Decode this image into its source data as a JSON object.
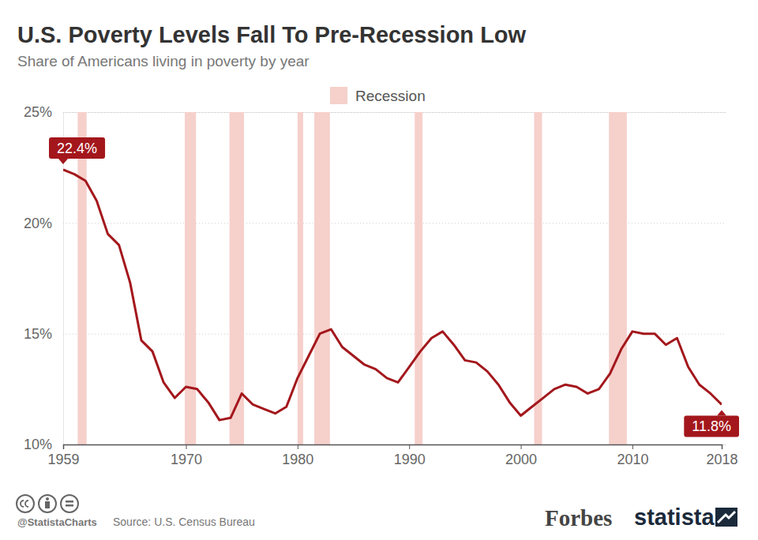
{
  "chart_data": {
    "type": "line",
    "title": "U.S. Poverty Levels Fall To Pre-Recession Low",
    "subtitle": "Share of Americans living in poverty by year",
    "source": "Source: U.S. Census Bureau",
    "credit": "@StatistaCharts",
    "brands": [
      "Forbes",
      "statista"
    ],
    "color": "#a3171c",
    "x": [
      1959,
      1960,
      1961,
      1962,
      1963,
      1964,
      1965,
      1966,
      1967,
      1968,
      1969,
      1970,
      1971,
      1972,
      1973,
      1974,
      1975,
      1976,
      1977,
      1978,
      1979,
      1980,
      1981,
      1982,
      1983,
      1984,
      1985,
      1986,
      1987,
      1988,
      1989,
      1990,
      1991,
      1992,
      1993,
      1994,
      1995,
      1996,
      1997,
      1998,
      1999,
      2000,
      2001,
      2002,
      2003,
      2004,
      2005,
      2006,
      2007,
      2008,
      2009,
      2010,
      2011,
      2012,
      2013,
      2014,
      2015,
      2016,
      2017,
      2018
    ],
    "values": [
      22.4,
      22.2,
      21.9,
      21.0,
      19.5,
      19.0,
      17.3,
      14.7,
      14.2,
      12.8,
      12.1,
      12.6,
      12.5,
      11.9,
      11.1,
      11.2,
      12.3,
      11.8,
      11.6,
      11.4,
      11.7,
      13.0,
      14.0,
      15.0,
      15.2,
      14.4,
      14.0,
      13.6,
      13.4,
      13.0,
      12.8,
      13.5,
      14.2,
      14.8,
      15.1,
      14.5,
      13.8,
      13.7,
      13.3,
      12.7,
      11.9,
      11.3,
      11.7,
      12.1,
      12.5,
      12.7,
      12.6,
      12.3,
      12.5,
      13.2,
      14.3,
      15.1,
      15.0,
      15.0,
      14.5,
      14.8,
      13.5,
      12.7,
      12.3,
      11.8
    ],
    "xlim": [
      1959,
      2018
    ],
    "xticks": [
      1959,
      1970,
      1980,
      1990,
      2000,
      2010,
      2018
    ],
    "ylim": [
      10,
      25
    ],
    "yticks": [
      {
        "value": 10,
        "label": "10%"
      },
      {
        "value": 15,
        "label": "15%"
      },
      {
        "value": 20,
        "label": "20%"
      },
      {
        "value": 25,
        "label": "25%"
      }
    ],
    "grid": true,
    "recessions": {
      "name": "Recession",
      "color": "#f6d0cb",
      "ranges": [
        [
          1960.3,
          1961.1
        ],
        [
          1969.9,
          1970.9
        ],
        [
          1973.9,
          1975.2
        ],
        [
          1980.0,
          1980.5
        ],
        [
          1981.5,
          1982.9
        ],
        [
          1990.5,
          1991.2
        ],
        [
          2001.2,
          2001.9
        ],
        [
          2007.9,
          2009.5
        ]
      ]
    },
    "annotations": [
      {
        "text": "22.4%",
        "x": 1959,
        "y": 22.4
      },
      {
        "text": "11.8%",
        "x": 2018,
        "y": 11.8
      }
    ]
  }
}
